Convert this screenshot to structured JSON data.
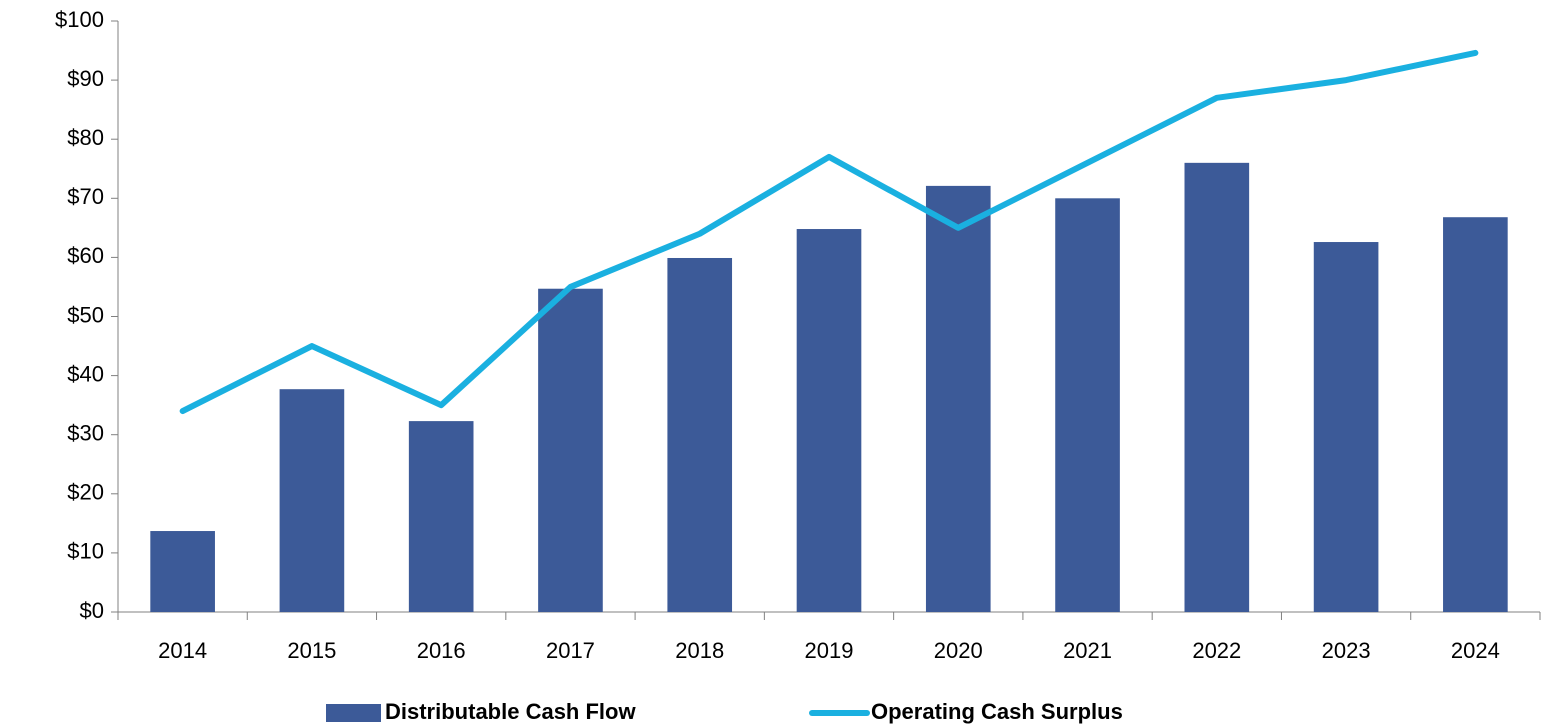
{
  "chart_data": {
    "type": "bar_line",
    "categories": [
      "2014",
      "2015",
      "2016",
      "2017",
      "2018",
      "2019",
      "2020",
      "2021",
      "2022",
      "2023",
      "2024"
    ],
    "series": [
      {
        "name": "Distributable Cash Flow",
        "type": "bar",
        "color": "#3c5a98",
        "values": [
          13.7,
          37.7,
          32.3,
          54.7,
          59.9,
          64.8,
          72.1,
          70,
          76,
          62.6,
          66.8
        ]
      },
      {
        "name": "Operating Cash Surplus",
        "type": "line",
        "color": "#1ab0e0",
        "values": [
          34,
          45,
          35,
          55,
          64,
          77,
          65,
          76,
          87,
          90,
          94.6
        ]
      }
    ],
    "ylim": [
      0,
      100
    ],
    "yticks": [
      {
        "value": 0,
        "label": "$0"
      },
      {
        "value": 10,
        "label": "$10"
      },
      {
        "value": 20,
        "label": "$20"
      },
      {
        "value": 30,
        "label": "$30"
      },
      {
        "value": 40,
        "label": "$40"
      },
      {
        "value": 50,
        "label": "$50"
      },
      {
        "value": 60,
        "label": "$60"
      },
      {
        "value": 70,
        "label": "$70"
      },
      {
        "value": 80,
        "label": "$80"
      },
      {
        "value": 90,
        "label": "$90"
      },
      {
        "value": 100,
        "label": "$100"
      }
    ],
    "grid": false,
    "legend": "bottom"
  }
}
